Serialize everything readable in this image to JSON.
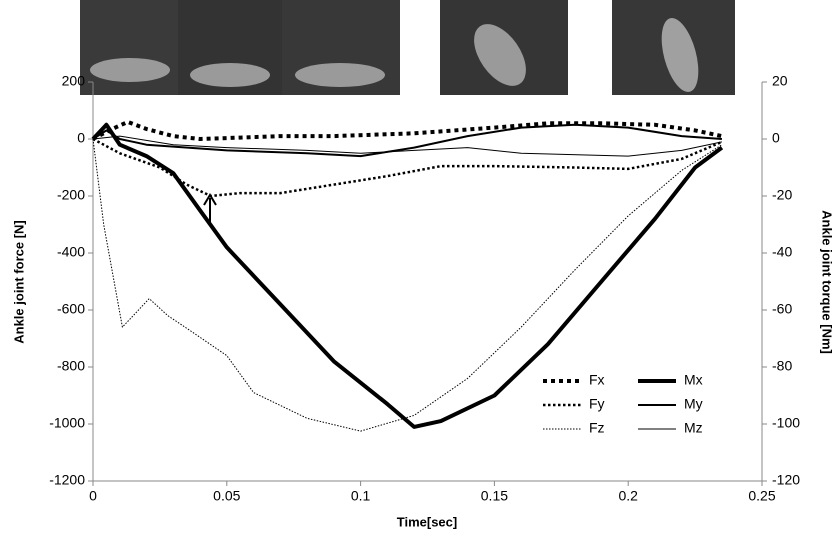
{
  "chart_data": {
    "type": "line",
    "xlabel": "Time[sec]",
    "ylabel": "Ankle joint force [N]",
    "y2label": "Ankle joint torque [Nm]",
    "xlim": [
      0,
      0.25
    ],
    "xticks": [
      0,
      0.05,
      0.1,
      0.15,
      0.2,
      0.25
    ],
    "ylim": [
      -1200,
      200
    ],
    "yticks": [
      -1200,
      -1000,
      -800,
      -600,
      -400,
      -200,
      0,
      200
    ],
    "y2lim": [
      -120,
      20
    ],
    "y2ticks": [
      -120,
      -100,
      -80,
      -60,
      -40,
      -20,
      0,
      20
    ],
    "grid": false,
    "legend": "lower right",
    "series": [
      {
        "name": "Fx",
        "color": "#000000",
        "dash": "dotted",
        "width": 4,
        "x": [
          0,
          0.006,
          0.013,
          0.02,
          0.03,
          0.04,
          0.055,
          0.07,
          0.09,
          0.12,
          0.15,
          0.17,
          0.19,
          0.21,
          0.225,
          0.235
        ],
        "values": [
          0,
          30,
          60,
          35,
          10,
          0,
          5,
          10,
          10,
          20,
          40,
          55,
          55,
          50,
          30,
          10
        ]
      },
      {
        "name": "Fy",
        "color": "#000000",
        "dash": "dotted",
        "width": 2.5,
        "x": [
          0,
          0.01,
          0.025,
          0.035,
          0.044,
          0.055,
          0.07,
          0.09,
          0.11,
          0.13,
          0.15,
          0.18,
          0.2,
          0.22,
          0.235
        ],
        "values": [
          0,
          -50,
          -100,
          -160,
          -200,
          -190,
          -190,
          -160,
          -130,
          -95,
          -95,
          -100,
          -105,
          -70,
          -10
        ]
      },
      {
        "name": "Fz",
        "color": "#000000",
        "dash": "dotted",
        "width": 1,
        "x": [
          0,
          0.004,
          0.011,
          0.016,
          0.021,
          0.028,
          0.036,
          0.05,
          0.06,
          0.08,
          0.1,
          0.12,
          0.14,
          0.16,
          0.18,
          0.2,
          0.22,
          0.235
        ],
        "values": [
          0,
          -300,
          -660,
          -610,
          -560,
          -620,
          -670,
          -760,
          -890,
          -980,
          -1025,
          -970,
          -840,
          -660,
          -460,
          -270,
          -110,
          -20
        ]
      },
      {
        "name": "Mx",
        "color": "#000000",
        "dash": "solid",
        "width": 4,
        "axis": "y2",
        "x": [
          0,
          0.005,
          0.01,
          0.02,
          0.03,
          0.04,
          0.05,
          0.07,
          0.09,
          0.11,
          0.12,
          0.13,
          0.15,
          0.17,
          0.19,
          0.21,
          0.225,
          0.235
        ],
        "values": [
          0,
          5,
          -2,
          -6,
          -12,
          -25,
          -38,
          -58,
          -78,
          -93,
          -101,
          -99,
          -90,
          -72,
          -50,
          -28,
          -10,
          -3
        ]
      },
      {
        "name": "My",
        "color": "#000000",
        "dash": "solid",
        "width": 2,
        "axis": "y2",
        "x": [
          0,
          0.005,
          0.01,
          0.02,
          0.05,
          0.08,
          0.1,
          0.12,
          0.14,
          0.16,
          0.18,
          0.2,
          0.22,
          0.235
        ],
        "values": [
          0,
          3,
          0,
          -2,
          -4,
          -5,
          -6,
          -3,
          1,
          4,
          5,
          4,
          1,
          0
        ]
      },
      {
        "name": "Mz",
        "color": "#000000",
        "dash": "solid",
        "width": 1,
        "axis": "y2",
        "x": [
          0,
          0.01,
          0.03,
          0.05,
          0.08,
          0.1,
          0.12,
          0.14,
          0.16,
          0.2,
          0.22,
          0.235
        ],
        "values": [
          0,
          1,
          -2,
          -3,
          -4,
          -5,
          -4,
          -3,
          -5,
          -6,
          -4,
          -1
        ]
      }
    ]
  }
}
